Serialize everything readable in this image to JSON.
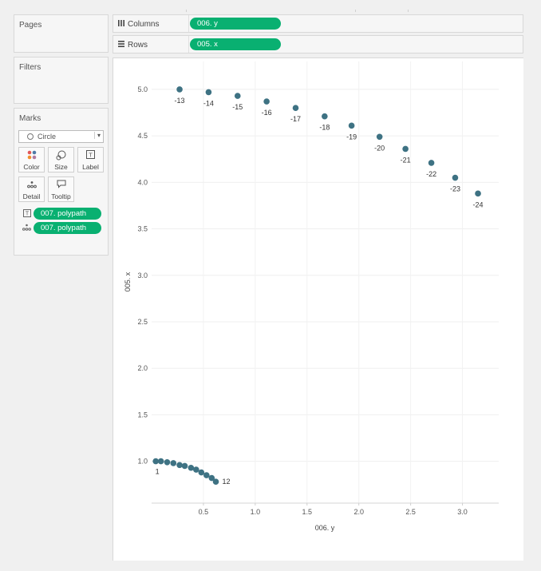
{
  "panels": {
    "pages_title": "Pages",
    "filters_title": "Filters",
    "marks_title": "Marks"
  },
  "shelves": {
    "columns": {
      "label": "Columns",
      "icon": "columns-icon",
      "pill": "006. y"
    },
    "rows": {
      "label": "Rows",
      "icon": "rows-icon",
      "pill": "005. x"
    }
  },
  "marks": {
    "type": "Circle",
    "buttons": [
      {
        "label": "Color",
        "icon": "color-icon"
      },
      {
        "label": "Size",
        "icon": "size-icon"
      },
      {
        "label": "Label",
        "icon": "label-icon"
      },
      {
        "label": "Detail",
        "icon": "detail-icon"
      },
      {
        "label": "Tooltip",
        "icon": "tooltip-icon"
      }
    ],
    "fields": [
      {
        "icon": "label-icon",
        "pill": "007. polypath"
      },
      {
        "icon": "detail-icon",
        "pill": "007. polypath"
      }
    ]
  },
  "colors": {
    "pill": "#09b071",
    "mark": "#3e7283"
  },
  "chart_data": {
    "type": "scatter",
    "xlabel": "006. y",
    "ylabel": "005. x",
    "xlim": [
      0.0,
      3.35
    ],
    "ylim": [
      0.55,
      5.3
    ],
    "xticks": [
      "0.5",
      "1.0",
      "1.5",
      "2.0",
      "2.5",
      "3.0"
    ],
    "yticks": [
      "1.0",
      "1.5",
      "2.0",
      "2.5",
      "3.0",
      "3.5",
      "4.0",
      "4.5",
      "5.0"
    ],
    "points": [
      {
        "x": 0.04,
        "y": 1.0,
        "label": "1"
      },
      {
        "x": 0.09,
        "y": 1.0,
        "label": ""
      },
      {
        "x": 0.15,
        "y": 0.99,
        "label": ""
      },
      {
        "x": 0.21,
        "y": 0.98,
        "label": ""
      },
      {
        "x": 0.27,
        "y": 0.96,
        "label": ""
      },
      {
        "x": 0.32,
        "y": 0.95,
        "label": ""
      },
      {
        "x": 0.38,
        "y": 0.93,
        "label": ""
      },
      {
        "x": 0.43,
        "y": 0.91,
        "label": ""
      },
      {
        "x": 0.48,
        "y": 0.88,
        "label": ""
      },
      {
        "x": 0.53,
        "y": 0.85,
        "label": ""
      },
      {
        "x": 0.58,
        "y": 0.82,
        "label": ""
      },
      {
        "x": 0.62,
        "y": 0.78,
        "label": "12"
      },
      {
        "x": 0.27,
        "y": 5.0,
        "label": "-13"
      },
      {
        "x": 0.55,
        "y": 4.97,
        "label": "-14"
      },
      {
        "x": 0.83,
        "y": 4.93,
        "label": "-15"
      },
      {
        "x": 1.11,
        "y": 4.87,
        "label": "-16"
      },
      {
        "x": 1.39,
        "y": 4.8,
        "label": "-17"
      },
      {
        "x": 1.67,
        "y": 4.71,
        "label": "-18"
      },
      {
        "x": 1.93,
        "y": 4.61,
        "label": "-19"
      },
      {
        "x": 2.2,
        "y": 4.49,
        "label": "-20"
      },
      {
        "x": 2.45,
        "y": 4.36,
        "label": "-21"
      },
      {
        "x": 2.7,
        "y": 4.21,
        "label": "-22"
      },
      {
        "x": 2.93,
        "y": 4.05,
        "label": "-23"
      },
      {
        "x": 3.15,
        "y": 3.88,
        "label": "-24"
      }
    ]
  }
}
